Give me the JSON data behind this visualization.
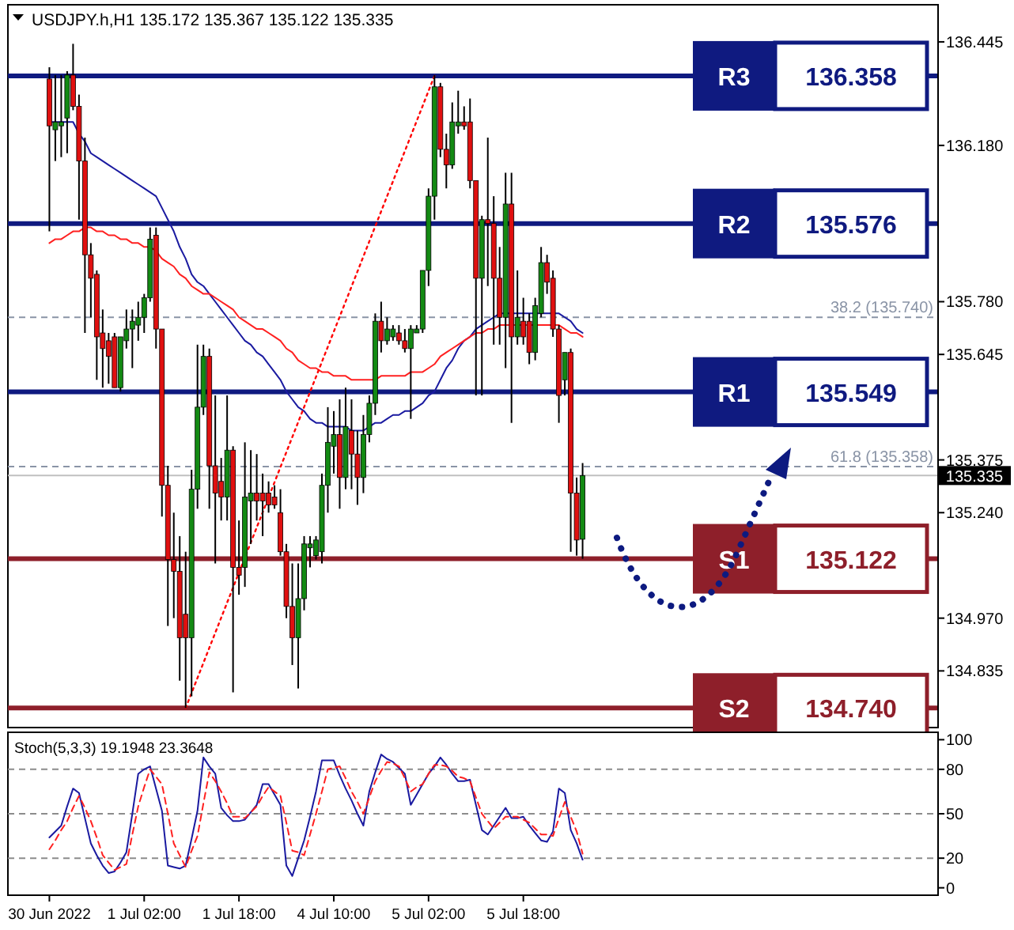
{
  "chart_data": [
    {
      "type": "candlestick",
      "title": "USDJPY.h,H1  135.172 135.367 135.122 135.335",
      "categories": [
        null,
        null,
        null,
        null,
        null,
        null,
        null,
        null,
        null,
        null,
        null,
        null,
        null,
        null,
        null,
        null,
        null,
        null,
        null,
        null,
        null,
        null,
        null,
        null,
        null,
        null,
        null,
        null,
        null,
        null,
        null,
        null,
        null,
        null,
        null,
        null,
        null,
        null,
        null,
        null,
        null,
        null,
        null,
        null,
        null,
        null,
        null,
        null,
        null,
        null,
        null,
        null,
        null,
        null,
        null,
        null,
        null,
        null,
        null,
        null,
        null,
        null,
        null,
        null,
        null,
        null,
        null,
        null,
        null,
        null,
        null,
        null,
        null,
        null,
        null,
        null,
        null,
        null,
        null,
        null,
        null,
        null,
        null,
        null,
        null,
        null,
        null,
        null,
        null,
        null,
        null
      ],
      "ohlc": [
        [
          136.35,
          136.38,
          135.96,
          136.23
        ],
        [
          136.22,
          136.36,
          136.14,
          136.24
        ],
        [
          136.23,
          136.36,
          136.15,
          136.24
        ],
        [
          136.25,
          136.37,
          136.16,
          136.36
        ],
        [
          136.36,
          136.44,
          136.27,
          136.28
        ],
        [
          136.28,
          136.31,
          135.99,
          136.14
        ],
        [
          136.14,
          136.2,
          135.7,
          135.9
        ],
        [
          135.9,
          135.93,
          135.74,
          135.84
        ],
        [
          135.85,
          135.86,
          135.58,
          135.69
        ],
        [
          135.7,
          135.76,
          135.56,
          135.66
        ],
        [
          135.68,
          135.7,
          135.57,
          135.64
        ],
        [
          135.69,
          135.7,
          135.56,
          135.56
        ],
        [
          135.56,
          135.69,
          135.55,
          135.69
        ],
        [
          135.68,
          135.76,
          135.66,
          135.71
        ],
        [
          135.71,
          135.76,
          135.61,
          135.73
        ],
        [
          135.72,
          135.78,
          135.68,
          135.74
        ],
        [
          135.74,
          135.8,
          135.7,
          135.79
        ],
        [
          135.79,
          135.97,
          135.78,
          135.94
        ],
        [
          135.95,
          135.97,
          135.66,
          135.71
        ],
        [
          135.71,
          135.71,
          135.23,
          135.31
        ],
        [
          135.31,
          135.36,
          134.95,
          135.12
        ],
        [
          135.12,
          135.24,
          134.97,
          135.09
        ],
        [
          135.09,
          135.18,
          134.81,
          134.92
        ],
        [
          134.98,
          135.14,
          134.74,
          134.92
        ],
        [
          134.92,
          135.35,
          134.77,
          135.3
        ],
        [
          135.3,
          135.67,
          135.25,
          135.51
        ],
        [
          135.51,
          135.67,
          135.49,
          135.64
        ],
        [
          135.64,
          135.66,
          135.25,
          135.36
        ],
        [
          135.36,
          135.54,
          135.11,
          135.29
        ],
        [
          135.32,
          135.38,
          135.22,
          135.28
        ],
        [
          135.28,
          135.54,
          135.22,
          135.4
        ],
        [
          135.4,
          135.41,
          134.78,
          135.1
        ],
        [
          135.1,
          135.22,
          135.03,
          135.08
        ],
        [
          135.1,
          135.42,
          135.05,
          135.28
        ],
        [
          135.27,
          135.4,
          135.16,
          135.29
        ],
        [
          135.29,
          135.39,
          135.22,
          135.27
        ],
        [
          135.29,
          135.34,
          135.18,
          135.27
        ],
        [
          135.29,
          135.32,
          135.24,
          135.26
        ],
        [
          135.28,
          135.31,
          135.25,
          135.26
        ],
        [
          135.24,
          135.3,
          135.13,
          135.14
        ],
        [
          135.14,
          135.16,
          134.97,
          135
        ],
        [
          135,
          135.11,
          134.85,
          134.92
        ],
        [
          134.92,
          135.11,
          134.79,
          135.02
        ],
        [
          135.02,
          135.18,
          134.99,
          135.16
        ],
        [
          135.15,
          135.18,
          135.1,
          135.16
        ],
        [
          135.13,
          135.18,
          135.12,
          135.17
        ],
        [
          135.14,
          135.34,
          135.11,
          135.31
        ],
        [
          135.31,
          135.51,
          135.24,
          135.42
        ],
        [
          135.41,
          135.5,
          135.34,
          135.44
        ],
        [
          135.44,
          135.53,
          135.25,
          135.33
        ],
        [
          135.33,
          135.56,
          135.3,
          135.46
        ],
        [
          135.45,
          135.53,
          135.3,
          135.39
        ],
        [
          135.39,
          135.45,
          135.26,
          135.33
        ],
        [
          135.33,
          135.49,
          135.29,
          135.44
        ],
        [
          135.44,
          135.54,
          135.42,
          135.52
        ],
        [
          135.52,
          135.75,
          135.49,
          135.73
        ],
        [
          135.73,
          135.78,
          135.65,
          135.68
        ],
        [
          135.68,
          135.74,
          135.67,
          135.71
        ],
        [
          135.69,
          135.72,
          135.68,
          135.71
        ],
        [
          135.7,
          135.72,
          135.67,
          135.68
        ],
        [
          135.68,
          135.71,
          135.65,
          135.66
        ],
        [
          135.66,
          135.72,
          135.48,
          135.71
        ],
        [
          135.7,
          135.72,
          135.7,
          135.71
        ],
        [
          135.71,
          135.86,
          135.7,
          135.86
        ],
        [
          135.86,
          136.07,
          135.82,
          136.05
        ],
        [
          136.05,
          136.36,
          135.99,
          136.33
        ],
        [
          136.33,
          136.34,
          136.15,
          136.17
        ],
        [
          136.17,
          136.21,
          136.07,
          136.13
        ],
        [
          136.13,
          136.29,
          136.12,
          136.24
        ],
        [
          136.23,
          136.32,
          136.21,
          136.24
        ],
        [
          136.24,
          136.28,
          136.22,
          136.23
        ],
        [
          136.24,
          136.3,
          136.07,
          136.09
        ],
        [
          136.09,
          136.09,
          135.54,
          135.84
        ],
        [
          135.84,
          136,
          135.54,
          135.99
        ],
        [
          135.99,
          136.2,
          135.82,
          135.98
        ],
        [
          135.98,
          136.05,
          135.67,
          135.84
        ],
        [
          135.84,
          135.92,
          135.67,
          135.74
        ],
        [
          135.74,
          136.11,
          135.61,
          136.03
        ],
        [
          136.03,
          136.11,
          135.47,
          135.69
        ],
        [
          135.69,
          135.86,
          135.67,
          135.74
        ],
        [
          135.73,
          135.79,
          135.67,
          135.69
        ],
        [
          135.73,
          135.75,
          135.62,
          135.65
        ],
        [
          135.65,
          135.79,
          135.63,
          135.77
        ],
        [
          135.75,
          135.92,
          135.74,
          135.88
        ],
        [
          135.88,
          135.9,
          135.8,
          135.83
        ],
        [
          135.84,
          135.86,
          135.69,
          135.71
        ],
        [
          135.71,
          135.72,
          135.47,
          135.54
        ],
        [
          135.58,
          135.65,
          135.54,
          135.65
        ],
        [
          135.65,
          135.66,
          135.14,
          135.29
        ],
        [
          135.29,
          135.33,
          135.13,
          135.17
        ],
        [
          135.172,
          135.367,
          135.122,
          135.335
        ]
      ],
      "series": [
        {
          "type": "line",
          "color": "#1a1aa0",
          "values": [
            136.24,
            136.24,
            136.24,
            136.24,
            136.24,
            136.21,
            136.19,
            136.16,
            136.15,
            136.14,
            136.13,
            136.12,
            136.11,
            136.1,
            136.09,
            136.08,
            136.07,
            136.06,
            136.05,
            136.02,
            135.99,
            135.96,
            135.92,
            135.89,
            135.85,
            135.83,
            135.82,
            135.8,
            135.78,
            135.76,
            135.74,
            135.72,
            135.7,
            135.68,
            135.67,
            135.65,
            135.64,
            135.62,
            135.6,
            135.58,
            135.55,
            135.53,
            135.51,
            135.5,
            135.48,
            135.47,
            135.47,
            135.46,
            135.46,
            135.46,
            135.46,
            135.45,
            135.45,
            135.45,
            135.46,
            135.47,
            135.47,
            135.48,
            135.49,
            135.49,
            135.5,
            135.5,
            135.51,
            135.52,
            135.54,
            135.55,
            135.58,
            135.61,
            135.63,
            135.66,
            135.68,
            135.69,
            135.71,
            135.72,
            135.73,
            135.74,
            135.75,
            135.75,
            135.75,
            135.75,
            135.75,
            135.75,
            135.75,
            135.75,
            135.75,
            135.75,
            135.75,
            135.74,
            135.73,
            135.71,
            135.7
          ]
        },
        {
          "type": "line",
          "color": "#ff2020",
          "values": [
            135.93,
            135.94,
            135.94,
            135.95,
            135.96,
            135.96,
            135.97,
            135.97,
            135.96,
            135.96,
            135.95,
            135.95,
            135.94,
            135.94,
            135.93,
            135.93,
            135.92,
            135.92,
            135.91,
            135.89,
            135.88,
            135.87,
            135.85,
            135.84,
            135.82,
            135.81,
            135.8,
            135.8,
            135.79,
            135.78,
            135.77,
            135.76,
            135.74,
            135.73,
            135.72,
            135.71,
            135.71,
            135.7,
            135.69,
            135.68,
            135.66,
            135.65,
            135.63,
            135.62,
            135.61,
            135.61,
            135.6,
            135.6,
            135.59,
            135.59,
            135.59,
            135.58,
            135.58,
            135.58,
            135.58,
            135.58,
            135.59,
            135.59,
            135.59,
            135.59,
            135.59,
            135.6,
            135.6,
            135.6,
            135.61,
            135.62,
            135.64,
            135.65,
            135.66,
            135.67,
            135.68,
            135.69,
            135.7,
            135.7,
            135.71,
            135.71,
            135.72,
            135.72,
            135.72,
            135.72,
            135.72,
            135.72,
            135.72,
            135.72,
            135.72,
            135.72,
            135.72,
            135.71,
            135.7,
            135.7,
            135.69
          ]
        },
        {
          "type": "line",
          "color": "#ff0000",
          "line_style": "dotted",
          "values": [
            null,
            null,
            null,
            null,
            null,
            null,
            null,
            null,
            null,
            null,
            null,
            null,
            null,
            null,
            null,
            null,
            null,
            null,
            null,
            null,
            null,
            null,
            null,
            134.74,
            null,
            null,
            null,
            null,
            null,
            null,
            null,
            null,
            null,
            null,
            null,
            null,
            null,
            null,
            null,
            null,
            null,
            null,
            null,
            null,
            null,
            null,
            null,
            null,
            null,
            null,
            null,
            null,
            null,
            null,
            null,
            null,
            null,
            null,
            null,
            null,
            null,
            null,
            null,
            null,
            null,
            136.358,
            null,
            null,
            null,
            null,
            null,
            null,
            null,
            null,
            null,
            null,
            null,
            null,
            null,
            null,
            null,
            null,
            null,
            null,
            null,
            null,
            null,
            null,
            null,
            null,
            null
          ]
        }
      ],
      "ref_lines": [
        {
          "axis": "y",
          "value": 136.358,
          "label": "R3",
          "color": "#0f1a80"
        },
        {
          "axis": "y",
          "value": 135.98,
          "label": "R2",
          "color": "#0f1a80"
        },
        {
          "axis": "y",
          "value": 135.549,
          "label": "R1",
          "color": "#0f1a80"
        },
        {
          "axis": "y",
          "value": 135.122,
          "label": "S1",
          "color": "#8e1f2a"
        },
        {
          "axis": "y",
          "value": 134.74,
          "label": "S2",
          "color": "#8e1f2a"
        },
        {
          "axis": "y",
          "value": 135.335,
          "label": "135.335",
          "color": "#c0c0c0"
        },
        {
          "axis": "y",
          "value": 135.74,
          "label": "38.2 (135.740)",
          "color": "#8a94a6",
          "line_style": "dashed"
        },
        {
          "axis": "y",
          "value": 135.358,
          "label": "61.8 (135.358)",
          "color": "#8a94a6",
          "line_style": "dashed"
        }
      ],
      "annotations": [
        "136.358",
        "135.576",
        "135.549",
        "135.122",
        "134.740"
      ],
      "ylim": [
        134.69,
        136.54
      ],
      "yticks": [
        136.445,
        {
          "value": 136.18,
          "label": "136.180"
        },
        {
          "value": 135.78,
          "label": "135.780"
        },
        135.645,
        135.375,
        {
          "value": 135.24,
          "label": "135.240"
        },
        {
          "value": 134.97,
          "label": "134.970"
        },
        134.835
      ],
      "tick_labels": "y"
    },
    {
      "type": "line",
      "title": "Stoch(5,3,3) 19.1948 23.3648",
      "categories": [
        "30 Jun 2022",
        null,
        null,
        null,
        null,
        null,
        null,
        null,
        null,
        null,
        null,
        null,
        null,
        null,
        null,
        null,
        "1 Jul 02:00",
        null,
        null,
        null,
        null,
        null,
        null,
        null,
        null,
        null,
        null,
        null,
        null,
        null,
        null,
        null,
        "1 Jul 18:00",
        null,
        null,
        null,
        null,
        null,
        null,
        null,
        null,
        null,
        null,
        null,
        null,
        null,
        null,
        null,
        "4 Jul 10:00",
        null,
        null,
        null,
        null,
        null,
        null,
        null,
        null,
        null,
        null,
        null,
        null,
        null,
        null,
        null,
        "5 Jul 02:00",
        null,
        null,
        null,
        null,
        null,
        null,
        null,
        null,
        null,
        null,
        null,
        null,
        null,
        null,
        null,
        "5 Jul 18:00",
        null,
        null,
        null,
        null,
        null,
        null,
        null,
        null,
        null,
        null
      ],
      "series": [
        {
          "color": "#1a1aa0",
          "values": [
            34,
            38,
            42,
            55,
            67,
            64,
            47,
            30,
            22,
            15,
            10,
            11,
            17,
            24,
            50,
            77,
            80,
            82,
            67,
            52,
            15,
            14,
            13,
            15,
            33,
            52,
            88,
            82,
            77,
            54,
            49,
            45,
            45,
            46,
            51,
            56,
            70,
            70,
            63,
            56,
            15,
            8,
            20,
            32,
            48,
            65,
            86,
            86,
            86,
            76,
            67,
            59,
            50,
            42,
            65,
            78,
            90,
            87,
            85,
            81,
            77,
            56,
            63,
            70,
            77,
            82,
            88,
            83,
            77,
            72,
            72,
            73,
            56,
            39,
            36,
            42,
            48,
            54,
            47,
            47,
            48,
            42,
            37,
            32,
            31,
            38,
            67,
            64,
            39,
            30,
            19
          ]
        },
        {
          "color": "#ff2020",
          "line_style": "dashed",
          "values": [
            26,
            32,
            39,
            45,
            54,
            62,
            54,
            45,
            34,
            22,
            17,
            12,
            14,
            16,
            36,
            55,
            68,
            80,
            75,
            70,
            50,
            30,
            22,
            14,
            25,
            35,
            57,
            78,
            72,
            65,
            57,
            48,
            48,
            47,
            51,
            55,
            62,
            68,
            65,
            62,
            44,
            25,
            24,
            22,
            36,
            50,
            65,
            80,
            81,
            82,
            74,
            65,
            58,
            50,
            61,
            72,
            79,
            85,
            84,
            82,
            74,
            65,
            68,
            70,
            77,
            83,
            83,
            82,
            79,
            75,
            74,
            72,
            61,
            50,
            45,
            40,
            44,
            48,
            48,
            48,
            46,
            44,
            40,
            36,
            36,
            35,
            47,
            58,
            48,
            38,
            23
          ]
        }
      ],
      "ref_lines": [
        {
          "axis": "y",
          "value": 80,
          "color": "#8c8c8c",
          "line_style": "dashed"
        },
        {
          "axis": "y",
          "value": 50,
          "color": "#8c8c8c",
          "line_style": "dashed"
        },
        {
          "axis": "y",
          "value": 20,
          "color": "#8c8c8c",
          "line_style": "dashed"
        }
      ],
      "ylim": [
        -5,
        105
      ],
      "yticks": [
        100,
        80,
        50,
        20,
        0
      ]
    }
  ]
}
